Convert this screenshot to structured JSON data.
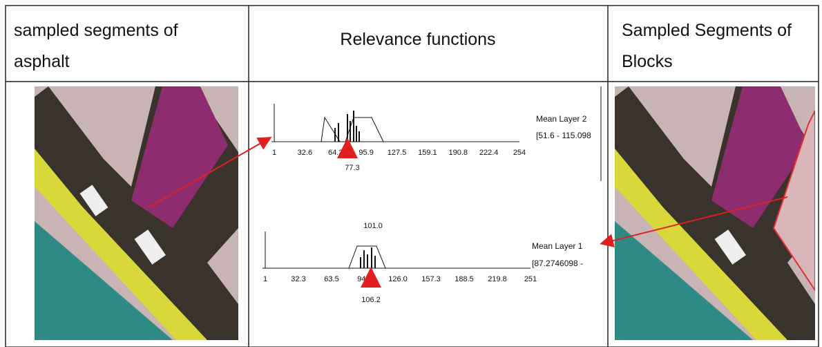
{
  "table": {
    "headers": [
      "sampled segments of asphalt",
      "Relevance functions",
      "Sampled Segments of Blocks"
    ]
  },
  "plots": [
    {
      "ticks": [
        "1",
        "32.6",
        "64.3",
        "95.9",
        "127.5",
        "159.1",
        "190.8",
        "222.4",
        "254"
      ],
      "marker": "77.3",
      "feature": "Mean Layer 2",
      "range": "[51.6 - 115.098"
    },
    {
      "ticks": [
        "1",
        "32.3",
        "63.5",
        "94.8",
        "126.0",
        "157.3",
        "188.5",
        "219.8",
        "251"
      ],
      "peak": "101.0",
      "marker": "106.2",
      "feature": "Mean Layer 1",
      "range": "[87.2746098 -"
    }
  ]
}
